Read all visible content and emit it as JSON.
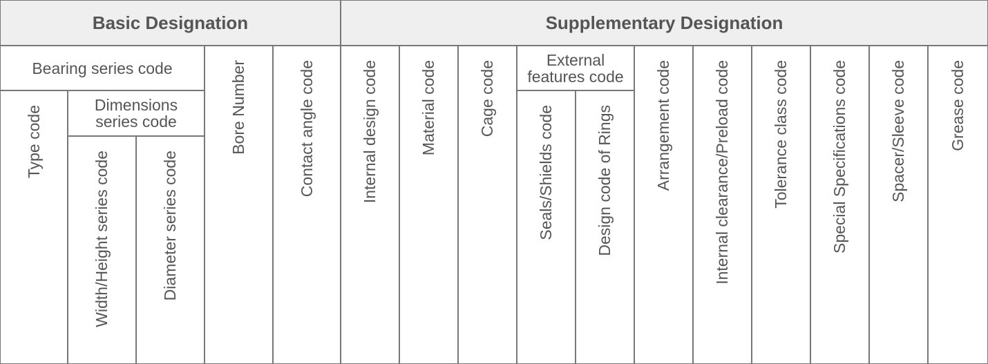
{
  "headers": {
    "basic": "Basic Designation",
    "supplementary": "Supplementary Designation"
  },
  "basic": {
    "bearing_series": "Bearing series code",
    "type": "Type code",
    "dimensions_series": "Dimensions series code",
    "width_height": "Width/Height series code",
    "diameter": "Diameter series code",
    "bore": "Bore Number",
    "contact_angle": "Contact angle code"
  },
  "supplementary": {
    "internal_design": "Internal design code",
    "material": "Material code",
    "cage": "Cage code",
    "external_features": "External features code",
    "seals_shields": "Seals/Shields code",
    "ring_design": "Design code of Rings",
    "arrangement": "Arrangement code",
    "clearance": "Internal clearance/Preload code",
    "tolerance": "Tolerance class code",
    "special": "Special Specifications code",
    "spacer": "Spacer/Sleeve code",
    "grease": "Grease code"
  }
}
